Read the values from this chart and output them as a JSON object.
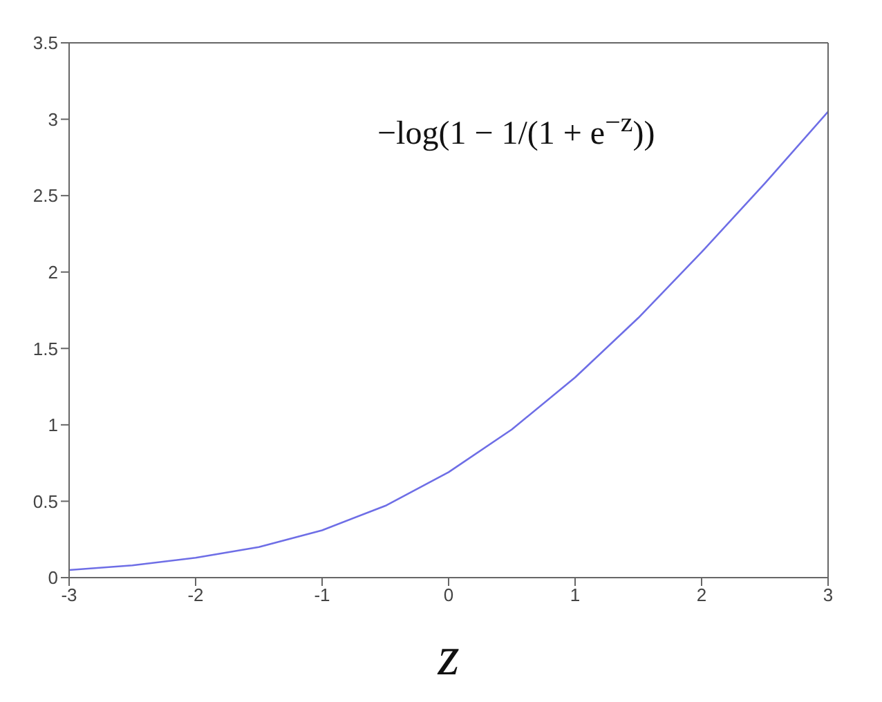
{
  "chart_data": {
    "type": "line",
    "xlabel": "z",
    "annotations": [
      "−log(1 − 1/(1 + e$^{−z}$))"
    ],
    "x": [
      -3,
      -2.5,
      -2,
      -1.5,
      -1,
      -0.5,
      0,
      0.5,
      1,
      1.5,
      2,
      2.5,
      3
    ],
    "series": [
      {
        "color": "#6e6ee6",
        "values": [
          0.05,
          0.08,
          0.13,
          0.2,
          0.31,
          0.47,
          0.69,
          0.97,
          1.31,
          1.7,
          2.13,
          2.58,
          3.05
        ]
      }
    ],
    "xlim": [
      -3,
      3
    ],
    "xticks": [
      -3,
      -2,
      -1,
      0,
      1,
      2,
      3
    ],
    "ylim": [
      0,
      3.5
    ],
    "yticks": [
      0,
      0.5,
      1,
      1.5,
      2,
      2.5,
      3,
      3.5
    ],
    "grid": false,
    "legend": false,
    "marker": "none",
    "line_style": "solid"
  }
}
